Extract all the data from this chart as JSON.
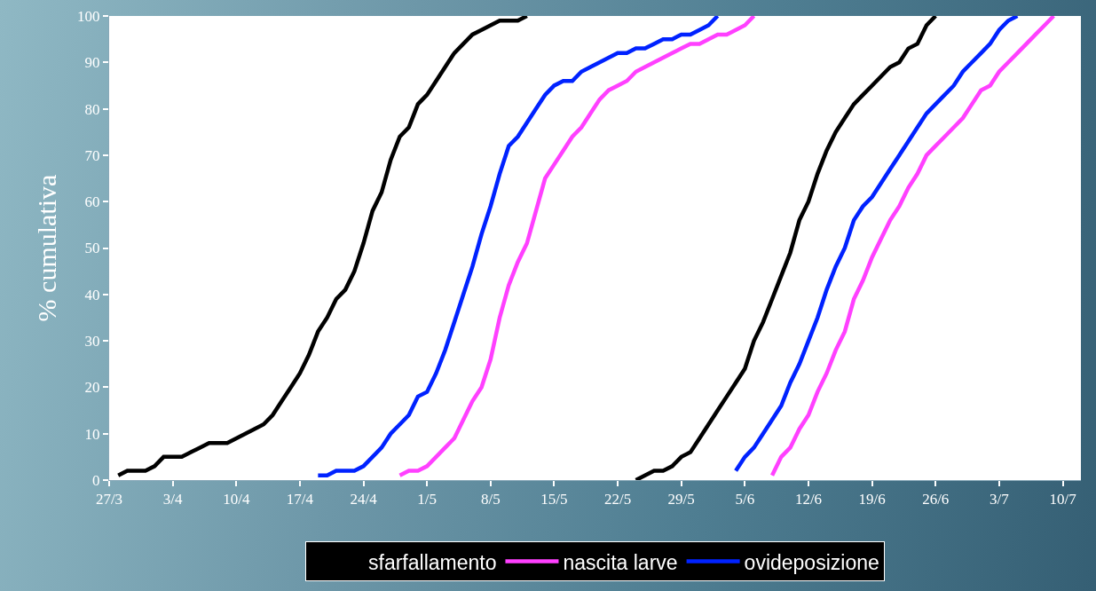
{
  "chart_data": {
    "type": "line",
    "ylabel": "% cumulativa",
    "ylim": [
      0,
      100
    ],
    "yticks": [
      0,
      10,
      20,
      30,
      40,
      50,
      60,
      70,
      80,
      90,
      100
    ],
    "xlim": [
      "--03-27",
      "--07-12"
    ],
    "xticks": [
      {
        "value": "--03-27",
        "label": "27/3"
      },
      {
        "value": "--04-03",
        "label": "3/4"
      },
      {
        "value": "--04-10",
        "label": "10/4"
      },
      {
        "value": "--04-17",
        "label": "17/4"
      },
      {
        "value": "--04-24",
        "label": "24/4"
      },
      {
        "value": "--05-01",
        "label": "1/5"
      },
      {
        "value": "--05-08",
        "label": "8/5"
      },
      {
        "value": "--05-15",
        "label": "15/5"
      },
      {
        "value": "--05-22",
        "label": "22/5"
      },
      {
        "value": "--05-29",
        "label": "29/5"
      },
      {
        "value": "--06-05",
        "label": "5/6"
      },
      {
        "value": "--06-12",
        "label": "12/6"
      },
      {
        "value": "--06-19",
        "label": "19/6"
      },
      {
        "value": "--06-26",
        "label": "26/6"
      },
      {
        "value": "--07-03",
        "label": "3/7"
      },
      {
        "value": "--07-10",
        "label": "10/7"
      }
    ],
    "grid": false,
    "legend": "bottom",
    "marker": "none",
    "line_style": "solid",
    "series": [
      {
        "name": "sfarfallamento",
        "color": "#000000",
        "x": [
          "--03-28",
          "--03-29",
          "--03-31",
          "--04-01",
          "--04-02",
          "--04-04",
          "--04-05",
          "--04-06",
          "--04-07",
          "--04-09",
          "--04-10",
          "--04-11",
          "--04-12",
          "--04-13",
          "--04-14",
          "--04-15",
          "--04-16",
          "--04-17",
          "--04-18",
          "--04-19",
          "--04-20",
          "--04-21",
          "--04-22",
          "--04-23",
          "--04-24",
          "--04-25",
          "--04-26",
          "--04-27",
          "--04-28",
          "--04-29",
          "--04-30",
          "--05-01",
          "--05-02",
          "--05-03",
          "--05-04",
          "--05-05",
          "--05-06",
          "--05-07",
          "--05-08",
          "--05-09",
          "--05-11",
          "--05-12",
          "--05-18",
          "--05-24",
          "--05-25",
          "--05-26",
          "--05-27",
          "--05-28",
          "--05-29",
          "--05-30",
          "--05-31",
          "--06-01",
          "--06-02",
          "--06-03",
          "--06-04",
          "--06-05",
          "--06-06",
          "--06-07",
          "--06-08",
          "--06-09",
          "--06-10",
          "--06-11",
          "--06-12",
          "--06-13",
          "--06-14",
          "--06-15",
          "--06-16",
          "--06-17",
          "--06-18",
          "--06-19",
          "--06-20",
          "--06-21",
          "--06-22",
          "--06-23",
          "--06-24",
          "--06-25",
          "--06-26"
        ],
        "values": [
          1,
          2,
          2,
          3,
          5,
          5,
          6,
          7,
          8,
          8,
          9,
          10,
          11,
          12,
          14,
          17,
          20,
          23,
          27,
          32,
          35,
          39,
          41,
          45,
          51,
          58,
          62,
          69,
          74,
          76,
          81,
          83,
          86,
          89,
          92,
          94,
          96,
          97,
          98,
          99,
          99,
          100,
          null,
          0,
          1,
          2,
          2,
          3,
          5,
          6,
          9,
          12,
          15,
          18,
          21,
          24,
          30,
          34,
          39,
          44,
          49,
          56,
          60,
          66,
          71,
          75,
          78,
          81,
          83,
          85,
          87,
          89,
          90,
          93,
          94,
          98,
          100
        ]
      },
      {
        "name": "nascita larve",
        "color": "#ff40ff",
        "x": [
          "--04-28",
          "--04-29",
          "--04-30",
          "--05-01",
          "--05-02",
          "--05-03",
          "--05-04",
          "--05-05",
          "--05-06",
          "--05-07",
          "--05-08",
          "--05-09",
          "--05-10",
          "--05-11",
          "--05-12",
          "--05-13",
          "--05-14",
          "--05-15",
          "--05-16",
          "--05-17",
          "--05-18",
          "--05-19",
          "--05-20",
          "--05-21",
          "--05-22",
          "--05-23",
          "--05-24",
          "--05-25",
          "--05-26",
          "--05-27",
          "--05-28",
          "--05-29",
          "--05-30",
          "--05-31",
          "--06-01",
          "--06-02",
          "--06-03",
          "--06-04",
          "--06-05",
          "--06-06",
          "--06-07",
          "--06-08",
          "--06-09",
          "--06-10",
          "--06-11",
          "--06-12",
          "--06-13",
          "--06-14",
          "--06-15",
          "--06-16",
          "--06-17",
          "--06-18",
          "--06-19",
          "--06-20",
          "--06-21",
          "--06-22",
          "--06-23",
          "--06-24",
          "--06-25",
          "--06-26",
          "--06-27",
          "--06-28",
          "--06-29",
          "--06-30",
          "--07-01",
          "--07-02",
          "--07-03",
          "--07-04",
          "--07-05",
          "--07-06",
          "--07-07",
          "--07-08",
          "--07-09"
        ],
        "values": [
          1,
          2,
          2,
          3,
          5,
          7,
          9,
          13,
          17,
          20,
          26,
          35,
          42,
          47,
          51,
          58,
          65,
          68,
          71,
          74,
          76,
          79,
          82,
          84,
          85,
          86,
          88,
          89,
          90,
          91,
          92,
          93,
          94,
          94,
          95,
          96,
          96,
          97,
          98,
          100,
          null,
          1,
          5,
          7,
          11,
          14,
          19,
          23,
          28,
          32,
          39,
          43,
          48,
          52,
          56,
          59,
          63,
          66,
          70,
          72,
          74,
          76,
          78,
          81,
          84,
          85,
          88,
          90,
          92,
          94,
          96,
          98,
          100
        ]
      },
      {
        "name": "ovideposizione",
        "color": "#0022ff",
        "x": [
          "--04-19",
          "--04-20",
          "--04-21",
          "--04-23",
          "--04-24",
          "--04-25",
          "--04-26",
          "--04-27",
          "--04-28",
          "--04-29",
          "--04-30",
          "--05-01",
          "--05-02",
          "--05-03",
          "--05-04",
          "--05-05",
          "--05-06",
          "--05-07",
          "--05-08",
          "--05-09",
          "--05-10",
          "--05-11",
          "--05-12",
          "--05-13",
          "--05-14",
          "--05-15",
          "--05-16",
          "--05-17",
          "--05-18",
          "--05-19",
          "--05-20",
          "--05-21",
          "--05-22",
          "--05-23",
          "--05-24",
          "--05-25",
          "--05-26",
          "--05-27",
          "--05-28",
          "--05-29",
          "--05-30",
          "--05-31",
          "--06-01",
          "--06-02",
          "--06-03",
          "--06-04",
          "--06-05",
          "--06-06",
          "--06-07",
          "--06-08",
          "--06-09",
          "--06-10",
          "--06-11",
          "--06-12",
          "--06-13",
          "--06-14",
          "--06-15",
          "--06-16",
          "--06-17",
          "--06-18",
          "--06-19",
          "--06-20",
          "--06-21",
          "--06-22",
          "--06-23",
          "--06-24",
          "--06-25",
          "--06-26",
          "--06-27",
          "--06-28",
          "--06-29",
          "--06-30",
          "--07-01",
          "--07-02",
          "--07-03",
          "--07-04",
          "--07-05"
        ],
        "values": [
          1,
          1,
          2,
          2,
          3,
          5,
          7,
          10,
          12,
          14,
          18,
          19,
          23,
          28,
          34,
          40,
          46,
          53,
          59,
          66,
          72,
          74,
          77,
          80,
          83,
          85,
          86,
          86,
          88,
          89,
          90,
          91,
          92,
          92,
          93,
          93,
          94,
          95,
          95,
          96,
          96,
          97,
          98,
          100,
          null,
          2,
          5,
          7,
          10,
          13,
          16,
          21,
          25,
          30,
          35,
          41,
          46,
          50,
          56,
          59,
          61,
          64,
          67,
          70,
          73,
          76,
          79,
          81,
          83,
          85,
          88,
          90,
          92,
          94,
          97,
          99,
          100
        ]
      }
    ]
  }
}
